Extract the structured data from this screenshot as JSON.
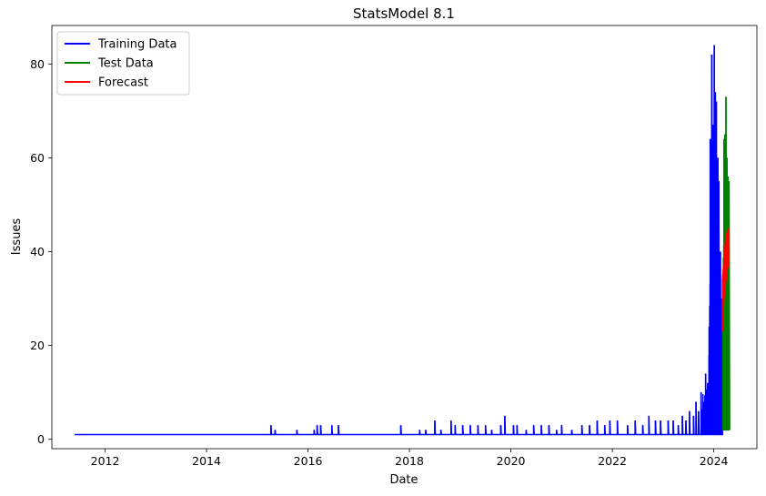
{
  "chart_data": {
    "type": "line",
    "title": "StatsModel 8.1",
    "xlabel": "Date",
    "ylabel": "Issues",
    "xlim": [
      2010.95,
      2024.85
    ],
    "ylim": [
      -2.0,
      88.2
    ],
    "x_ticks": [
      2012,
      2014,
      2016,
      2018,
      2020,
      2022,
      2024
    ],
    "y_ticks": [
      0,
      20,
      40,
      60,
      80
    ],
    "grid": false,
    "legend_position": "top-left",
    "series": [
      {
        "name": "Training Data",
        "color": "#0000ff",
        "style": "dense_spiky",
        "x_range": [
          2011.4,
          2024.17
        ],
        "baseline": 1,
        "spikes": [
          {
            "x": 2015.27,
            "y": 3
          },
          {
            "x": 2015.35,
            "y": 2
          },
          {
            "x": 2015.78,
            "y": 2
          },
          {
            "x": 2016.12,
            "y": 2
          },
          {
            "x": 2016.18,
            "y": 3
          },
          {
            "x": 2016.25,
            "y": 3
          },
          {
            "x": 2016.47,
            "y": 3
          },
          {
            "x": 2016.6,
            "y": 3
          },
          {
            "x": 2017.83,
            "y": 3
          },
          {
            "x": 2018.2,
            "y": 2
          },
          {
            "x": 2018.32,
            "y": 2
          },
          {
            "x": 2018.5,
            "y": 4
          },
          {
            "x": 2018.62,
            "y": 2
          },
          {
            "x": 2018.82,
            "y": 4
          },
          {
            "x": 2018.9,
            "y": 3
          },
          {
            "x": 2019.05,
            "y": 3
          },
          {
            "x": 2019.2,
            "y": 3
          },
          {
            "x": 2019.35,
            "y": 3
          },
          {
            "x": 2019.5,
            "y": 3
          },
          {
            "x": 2019.62,
            "y": 2
          },
          {
            "x": 2019.8,
            "y": 3
          },
          {
            "x": 2019.88,
            "y": 5
          },
          {
            "x": 2020.05,
            "y": 3
          },
          {
            "x": 2020.12,
            "y": 3
          },
          {
            "x": 2020.3,
            "y": 2
          },
          {
            "x": 2020.45,
            "y": 3
          },
          {
            "x": 2020.6,
            "y": 3
          },
          {
            "x": 2020.75,
            "y": 3
          },
          {
            "x": 2020.9,
            "y": 2
          },
          {
            "x": 2021.0,
            "y": 3
          },
          {
            "x": 2021.2,
            "y": 2
          },
          {
            "x": 2021.4,
            "y": 3
          },
          {
            "x": 2021.55,
            "y": 3
          },
          {
            "x": 2021.7,
            "y": 4
          },
          {
            "x": 2021.85,
            "y": 3
          },
          {
            "x": 2021.95,
            "y": 4
          },
          {
            "x": 2022.1,
            "y": 4
          },
          {
            "x": 2022.3,
            "y": 3
          },
          {
            "x": 2022.45,
            "y": 4
          },
          {
            "x": 2022.6,
            "y": 3
          },
          {
            "x": 2022.72,
            "y": 5
          },
          {
            "x": 2022.85,
            "y": 4
          },
          {
            "x": 2022.95,
            "y": 4
          },
          {
            "x": 2023.1,
            "y": 4
          },
          {
            "x": 2023.2,
            "y": 4
          },
          {
            "x": 2023.3,
            "y": 3
          },
          {
            "x": 2023.38,
            "y": 5
          },
          {
            "x": 2023.45,
            "y": 4
          },
          {
            "x": 2023.52,
            "y": 6
          },
          {
            "x": 2023.6,
            "y": 5
          },
          {
            "x": 2023.65,
            "y": 8
          },
          {
            "x": 2023.7,
            "y": 6
          },
          {
            "x": 2023.75,
            "y": 10
          },
          {
            "x": 2023.8,
            "y": 8
          },
          {
            "x": 2023.84,
            "y": 14
          },
          {
            "x": 2023.88,
            "y": 12
          },
          {
            "x": 2023.91,
            "y": 24
          },
          {
            "x": 2023.93,
            "y": 64
          },
          {
            "x": 2023.96,
            "y": 82
          },
          {
            "x": 2023.99,
            "y": 67
          },
          {
            "x": 2024.01,
            "y": 84
          },
          {
            "x": 2024.03,
            "y": 74
          },
          {
            "x": 2024.05,
            "y": 72
          },
          {
            "x": 2024.08,
            "y": 60
          },
          {
            "x": 2024.1,
            "y": 55
          },
          {
            "x": 2024.13,
            "y": 40
          },
          {
            "x": 2024.16,
            "y": 30
          }
        ]
      },
      {
        "name": "Test Data",
        "color": "#008000",
        "style": "dense_spiky",
        "x_range": [
          2024.17,
          2024.31
        ],
        "spikes": [
          {
            "x": 2024.18,
            "y": 35
          },
          {
            "x": 2024.2,
            "y": 64
          },
          {
            "x": 2024.22,
            "y": 65
          },
          {
            "x": 2024.24,
            "y": 73
          },
          {
            "x": 2024.26,
            "y": 60
          },
          {
            "x": 2024.28,
            "y": 56
          },
          {
            "x": 2024.3,
            "y": 55
          }
        ]
      },
      {
        "name": "Forecast",
        "color": "#ff0000",
        "style": "band",
        "x": [
          2024.17,
          2024.2,
          2024.23,
          2024.26,
          2024.3
        ],
        "upper": [
          34,
          38,
          42,
          44,
          45
        ],
        "lower": [
          23,
          30,
          33,
          36,
          38
        ]
      }
    ]
  }
}
